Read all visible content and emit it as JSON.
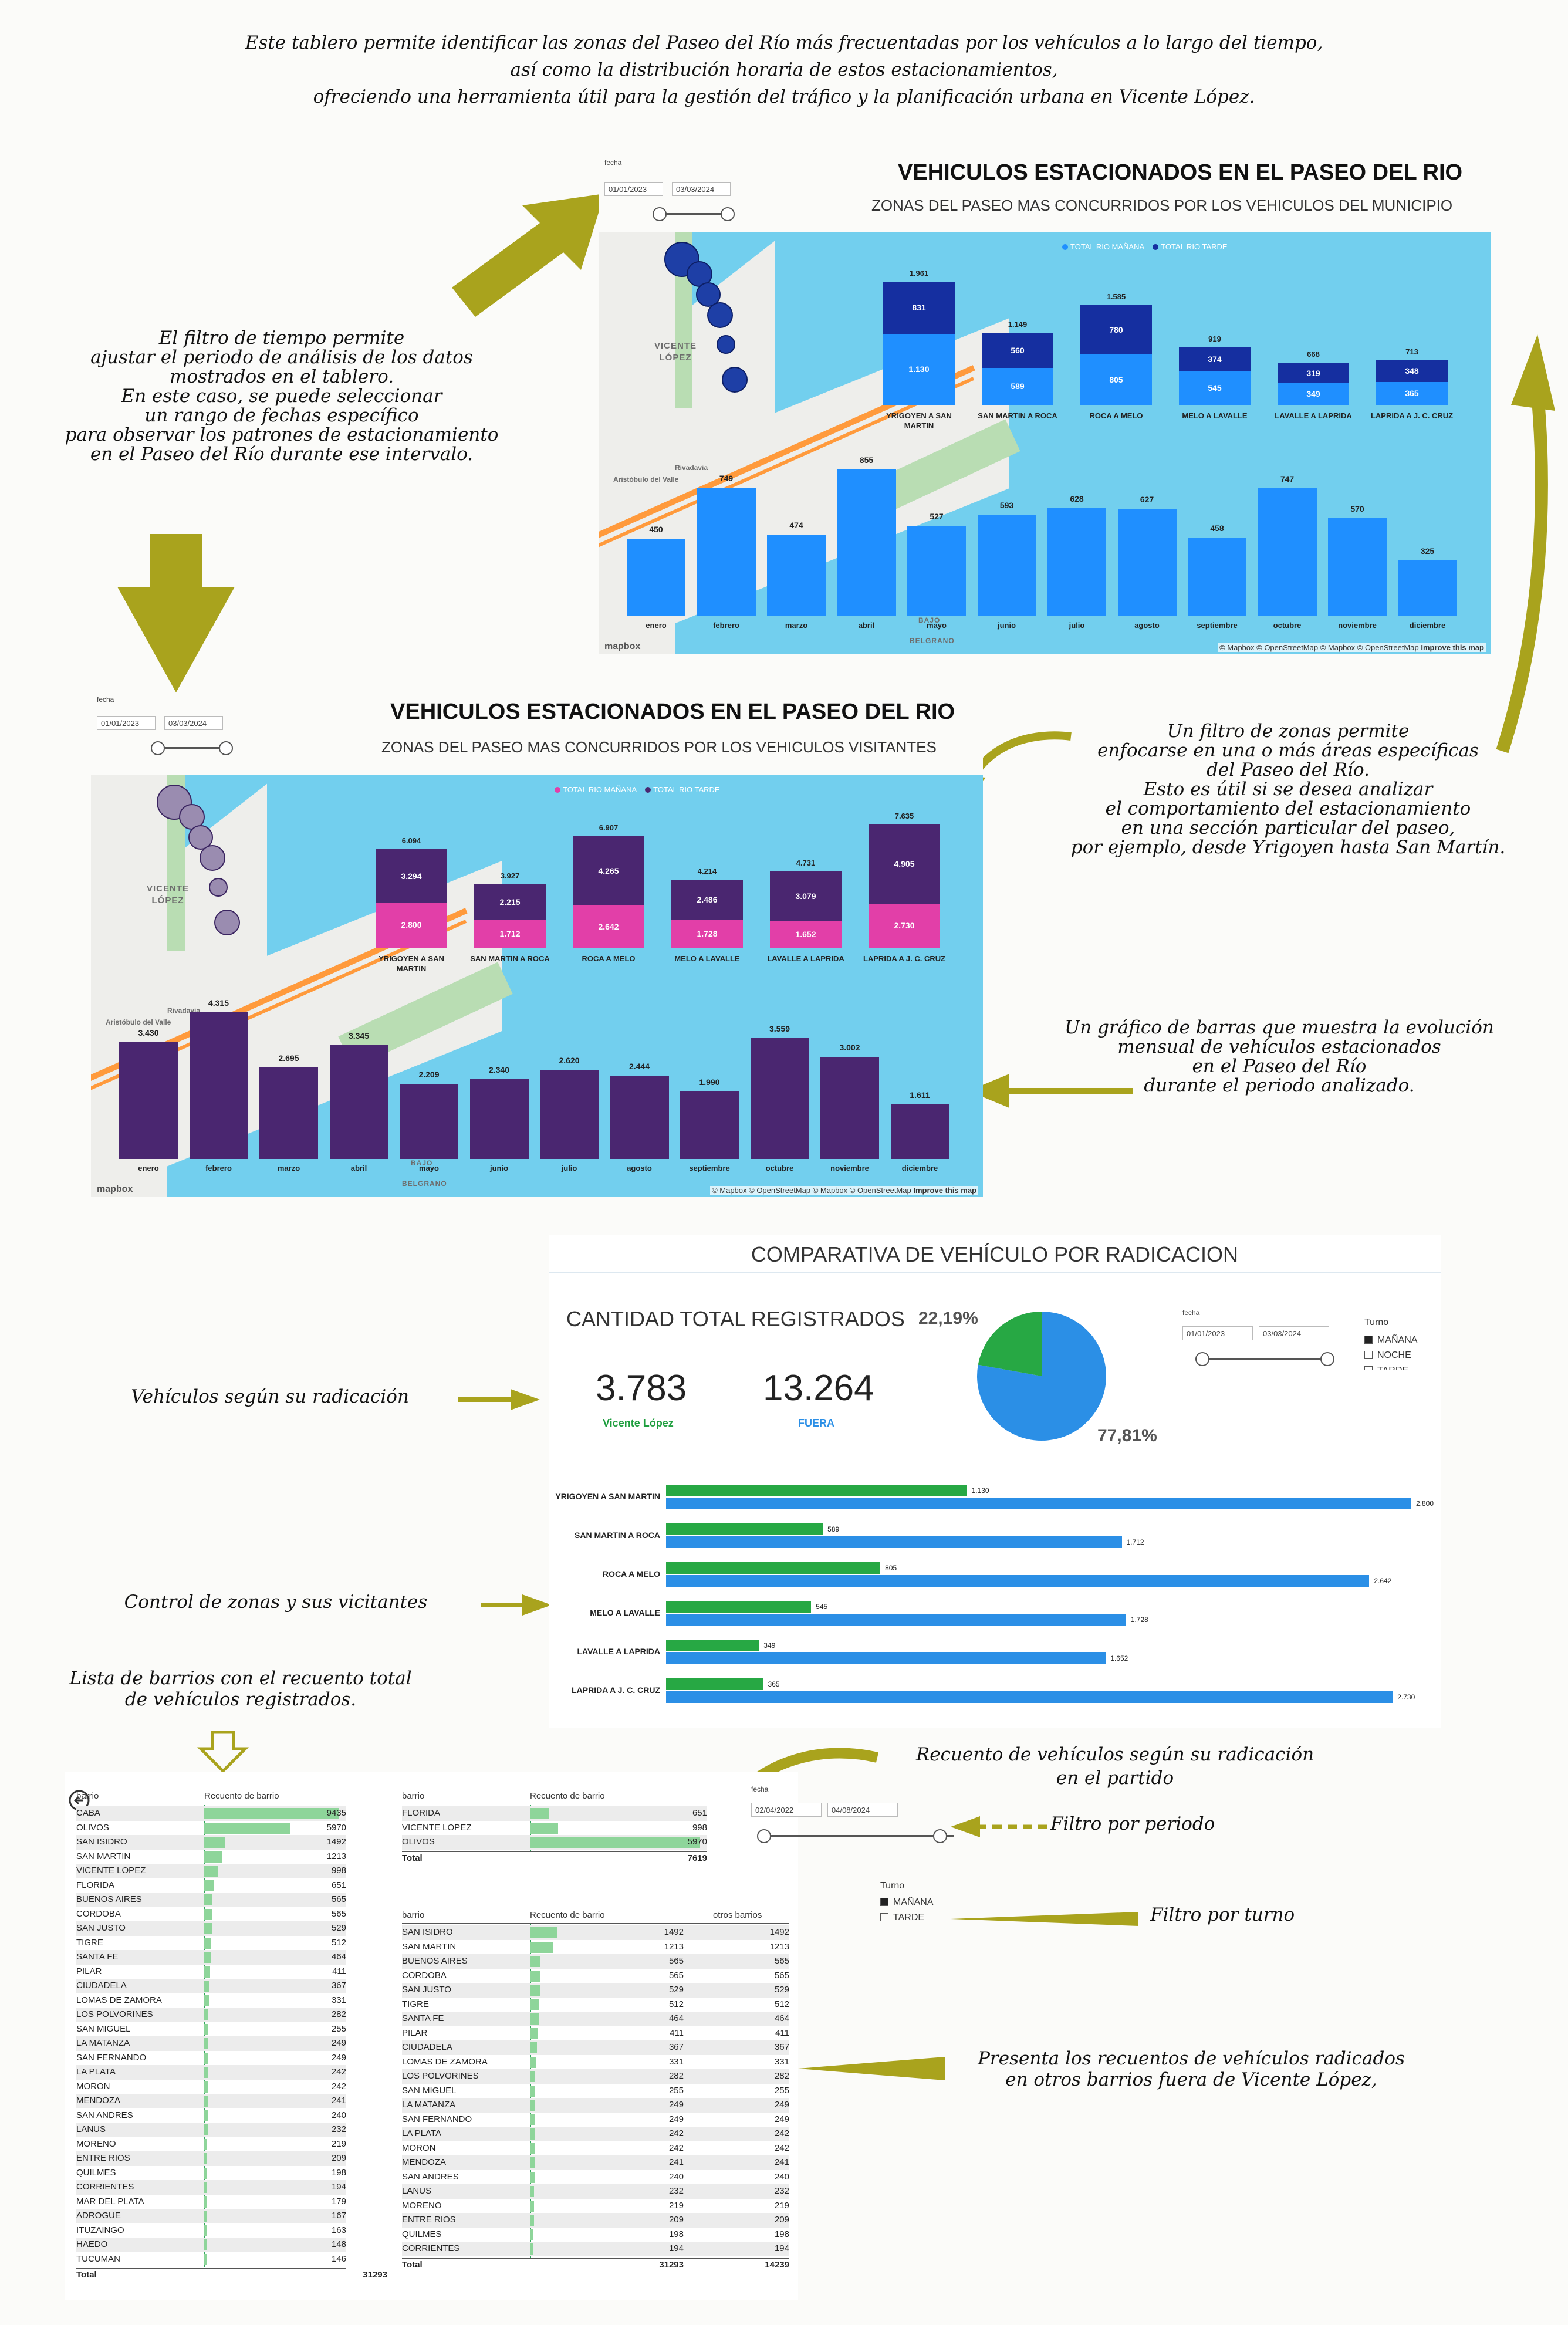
{
  "intro": [
    "Este tablero permite identificar las zonas del Paseo del Río más frecuentadas por los vehículos a lo largo del tiempo,",
    "así como la distribución horaria de estos estacionamientos,",
    "ofreciendo una herramienta útil para la gestión del tráfico y la planificación urbana en Vicente López."
  ],
  "notes": {
    "time_filter": [
      "El filtro de tiempo permite",
      "ajustar el periodo de análisis de los datos",
      "mostrados en el tablero.",
      "En este caso, se puede seleccionar",
      "un rango de fechas específico",
      "para observar los patrones de estacionamiento",
      "en el Paseo del Río durante ese intervalo."
    ],
    "zone_filter": [
      "Un filtro de zonas permite",
      "enfocarse en una o más áreas específicas",
      "del Paseo del Río.",
      "Esto es útil si se desea analizar",
      "el comportamiento del estacionamiento",
      "en una sección particular del paseo,",
      "por ejemplo, desde Yrigoyen hasta San Martín."
    ],
    "monthly": [
      "Un gráfico de barras que muestra la evolución",
      "mensual de vehículos estacionados",
      "en el Paseo del Río",
      "durante el periodo analizado."
    ],
    "radicacion": "Vehículos según su radicación",
    "zonas": "Control de zonas y sus vicitantes",
    "barrios": [
      "Lista de barrios con el recuento total",
      "de vehículos registrados."
    ],
    "recuento": [
      "Recuento de vehículos según su radicación",
      "en el partido"
    ],
    "periodo": "Filtro por periodo",
    "turno": "Filtro por turno",
    "otros": [
      "Presenta los recuentos de vehículos radicados",
      "en otros barrios fuera de Vicente López,"
    ]
  },
  "slicer": {
    "label": "fecha",
    "from": "01/01/2023",
    "to": "03/03/2024"
  },
  "slicer2": {
    "label": "fecha",
    "from": "02/04/2022",
    "to": "04/08/2024"
  },
  "map": {
    "place": [
      "VICENTE",
      "LÓPEZ"
    ],
    "label1": "Aristóbulo del Valle",
    "label2": "Rivadavia",
    "label3": "BAJO",
    "label4": "BELGRANO",
    "credit": "© Mapbox © OpenStreetMap © Mapbox © OpenStreetMap",
    "improve": "Improve this map",
    "logo": "mapbox"
  },
  "panel1": {
    "title": "VEHICULOS ESTACIONADOS EN EL PASEO DEL RIO",
    "subtitle": "ZONAS DEL PASEO MAS CONCURRIDOS POR LOS VEHICULOS DEL MUNICIPIO",
    "legend": [
      "TOTAL RIO MAÑANA",
      "TOTAL RIO TARDE"
    ],
    "colors": {
      "manana": "#1f8fff",
      "tarde": "#152fa0",
      "monthly": "#1f8fff"
    },
    "zones": [
      {
        "name": "YRIGOYEN A SAN MARTIN",
        "manana": 1130,
        "tarde": 831,
        "manana_label": "1.130",
        "tarde_label": "831",
        "total_label": "1.961"
      },
      {
        "name": "SAN MARTIN A ROCA",
        "manana": 589,
        "tarde": 560,
        "manana_label": "589",
        "tarde_label": "560",
        "total_label": "1.149"
      },
      {
        "name": "ROCA A MELO",
        "manana": 805,
        "tarde": 780,
        "manana_label": "805",
        "tarde_label": "780",
        "total_label": "1.585"
      },
      {
        "name": "MELO A LAVALLE",
        "manana": 545,
        "tarde": 374,
        "manana_label": "545",
        "tarde_label": "374",
        "total_label": "919"
      },
      {
        "name": "LAVALLE A LAPRIDA",
        "manana": 349,
        "tarde": 319,
        "manana_label": "349",
        "tarde_label": "319",
        "total_label": "668"
      },
      {
        "name": "LAPRIDA A J. C. CRUZ",
        "manana": 365,
        "tarde": 348,
        "manana_label": "365",
        "tarde_label": "348",
        "total_label": "713"
      }
    ],
    "months": [
      {
        "m": "enero",
        "v": 450,
        "l": "450"
      },
      {
        "m": "febrero",
        "v": 749,
        "l": "749"
      },
      {
        "m": "marzo",
        "v": 474,
        "l": "474"
      },
      {
        "m": "abril",
        "v": 855,
        "l": "855"
      },
      {
        "m": "mayo",
        "v": 527,
        "l": "527"
      },
      {
        "m": "junio",
        "v": 593,
        "l": "593"
      },
      {
        "m": "julio",
        "v": 628,
        "l": "628"
      },
      {
        "m": "agosto",
        "v": 627,
        "l": "627"
      },
      {
        "m": "septiembre",
        "v": 458,
        "l": "458"
      },
      {
        "m": "octubre",
        "v": 747,
        "l": "747"
      },
      {
        "m": "noviembre",
        "v": 570,
        "l": "570"
      },
      {
        "m": "diciembre",
        "v": 325,
        "l": "325"
      }
    ]
  },
  "panel2": {
    "title": "VEHICULOS ESTACIONADOS EN EL PASEO DEL RIO",
    "subtitle": "ZONAS DEL PASEO MAS CONCURRIDOS POR LOS VEHICULOS VISITANTES",
    "legend": [
      "TOTAL RIO MAÑANA",
      "TOTAL RIO TARDE"
    ],
    "colors": {
      "manana": "#e23fa8",
      "tarde": "#4a2670",
      "monthly": "#4a2670"
    },
    "zones": [
      {
        "name": "YRIGOYEN A SAN MARTIN",
        "manana": 2800,
        "tarde": 3294,
        "manana_label": "2.800",
        "tarde_label": "3.294",
        "total_label": "6.094"
      },
      {
        "name": "SAN MARTIN A ROCA",
        "manana": 1712,
        "tarde": 2215,
        "manana_label": "1.712",
        "tarde_label": "2.215",
        "total_label": "3.927"
      },
      {
        "name": "ROCA A MELO",
        "manana": 2642,
        "tarde": 4265,
        "manana_label": "2.642",
        "tarde_label": "4.265",
        "total_label": "6.907"
      },
      {
        "name": "MELO A LAVALLE",
        "manana": 1728,
        "tarde": 2486,
        "manana_label": "1.728",
        "tarde_label": "2.486",
        "total_label": "4.214"
      },
      {
        "name": "LAVALLE A LAPRIDA",
        "manana": 1652,
        "tarde": 3079,
        "manana_label": "1.652",
        "tarde_label": "3.079",
        "total_label": "4.731"
      },
      {
        "name": "LAPRIDA A J. C. CRUZ",
        "manana": 2730,
        "tarde": 4905,
        "manana_label": "2.730",
        "tarde_label": "4.905",
        "total_label": "7.635"
      }
    ],
    "months": [
      {
        "m": "enero",
        "v": 3430,
        "l": "3.430"
      },
      {
        "m": "febrero",
        "v": 4315,
        "l": "4.315"
      },
      {
        "m": "marzo",
        "v": 2695,
        "l": "2.695"
      },
      {
        "m": "abril",
        "v": 3345,
        "l": "3.345"
      },
      {
        "m": "mayo",
        "v": 2209,
        "l": "2.209"
      },
      {
        "m": "junio",
        "v": 2340,
        "l": "2.340"
      },
      {
        "m": "julio",
        "v": 2620,
        "l": "2.620"
      },
      {
        "m": "agosto",
        "v": 2444,
        "l": "2.444"
      },
      {
        "m": "septiembre",
        "v": 1990,
        "l": "1.990"
      },
      {
        "m": "octubre",
        "v": 3559,
        "l": "3.559"
      },
      {
        "m": "noviembre",
        "v": 3002,
        "l": "3.002"
      },
      {
        "m": "diciembre",
        "v": 1611,
        "l": "1.611"
      }
    ]
  },
  "panel3": {
    "title": "COMPARATIVA DE VEHÍCULO POR RADICACION",
    "kpi_title": "CANTIDAD TOTAL REGISTRADOS",
    "kpi1": {
      "value": "3.783",
      "label": "Vicente López",
      "color": "#1e9e3e"
    },
    "kpi2": {
      "value": "13.264",
      "label": "FUERA",
      "color": "#2b8fe6"
    },
    "pie": {
      "vl_pct": 22.19,
      "fuera_pct": 77.81,
      "vl_label": "22,19%",
      "fuera_label": "77,81%",
      "colors": [
        "#27a844",
        "#2b8fe6"
      ]
    },
    "turno": {
      "label": "Turno",
      "options": [
        "MAÑANA",
        "NOCHE",
        "TARDE"
      ],
      "checked": [
        true,
        false,
        false
      ]
    },
    "bars": [
      {
        "zone": "YRIGOYEN A SAN MARTIN",
        "vl": 1130,
        "fuera": 2800,
        "vl_label": "1.130",
        "fuera_label": "2.800"
      },
      {
        "zone": "SAN MARTIN A ROCA",
        "vl": 589,
        "fuera": 1712,
        "vl_label": "589",
        "fuera_label": "1.712"
      },
      {
        "zone": "ROCA A MELO",
        "vl": 805,
        "fuera": 2642,
        "vl_label": "805",
        "fuera_label": "2.642"
      },
      {
        "zone": "MELO A LAVALLE",
        "vl": 545,
        "fuera": 1728,
        "vl_label": "545",
        "fuera_label": "1.728"
      },
      {
        "zone": "LAVALLE A LAPRIDA",
        "vl": 349,
        "fuera": 1652,
        "vl_label": "349",
        "fuera_label": "1.652"
      },
      {
        "zone": "LAPRIDA A J. C. CRUZ",
        "vl": 365,
        "fuera": 2730,
        "vl_label": "365",
        "fuera_label": "2.730"
      }
    ]
  },
  "table1": {
    "headers": [
      "barrio",
      "Recuento de barrio"
    ],
    "rows": [
      [
        "CABA",
        9435
      ],
      [
        "OLIVOS",
        5970
      ],
      [
        "SAN ISIDRO",
        1492
      ],
      [
        "SAN MARTIN",
        1213
      ],
      [
        "VICENTE LOPEZ",
        998
      ],
      [
        "FLORIDA",
        651
      ],
      [
        "BUENOS AIRES",
        565
      ],
      [
        "CORDOBA",
        565
      ],
      [
        "SAN JUSTO",
        529
      ],
      [
        "TIGRE",
        512
      ],
      [
        "SANTA FE",
        464
      ],
      [
        "PILAR",
        411
      ],
      [
        "CIUDADELA",
        367
      ],
      [
        "LOMAS DE ZAMORA",
        331
      ],
      [
        "LOS POLVORINES",
        282
      ],
      [
        "SAN MIGUEL",
        255
      ],
      [
        "LA MATANZA",
        249
      ],
      [
        "SAN FERNANDO",
        249
      ],
      [
        "LA PLATA",
        242
      ],
      [
        "MORON",
        242
      ],
      [
        "MENDOZA",
        241
      ],
      [
        "SAN ANDRES",
        240
      ],
      [
        "LANUS",
        232
      ],
      [
        "MORENO",
        219
      ],
      [
        "ENTRE RIOS",
        209
      ],
      [
        "QUILMES",
        198
      ],
      [
        "CORRIENTES",
        194
      ],
      [
        "MAR DEL PLATA",
        179
      ],
      [
        "ADROGUE",
        167
      ],
      [
        "ITUZAINGO",
        163
      ],
      [
        "HAEDO",
        148
      ],
      [
        "TUCUMAN",
        146
      ]
    ],
    "total_label": "Total",
    "total": 31293,
    "max": 9435
  },
  "table2": {
    "headers": [
      "barrio",
      "Recuento de barrio"
    ],
    "rows": [
      [
        "FLORIDA",
        651
      ],
      [
        "VICENTE LOPEZ",
        998
      ],
      [
        "OLIVOS",
        5970
      ]
    ],
    "total_label": "Total",
    "total": 7619,
    "max": 5970
  },
  "table3": {
    "headers": [
      "barrio",
      "Recuento de barrio",
      "otros barrios"
    ],
    "rows": [
      [
        "SAN ISIDRO",
        1492,
        1492
      ],
      [
        "SAN MARTIN",
        1213,
        1213
      ],
      [
        "BUENOS AIRES",
        565,
        565
      ],
      [
        "CORDOBA",
        565,
        565
      ],
      [
        "SAN JUSTO",
        529,
        529
      ],
      [
        "TIGRE",
        512,
        512
      ],
      [
        "SANTA FE",
        464,
        464
      ],
      [
        "PILAR",
        411,
        411
      ],
      [
        "CIUDADELA",
        367,
        367
      ],
      [
        "LOMAS DE ZAMORA",
        331,
        331
      ],
      [
        "LOS POLVORINES",
        282,
        282
      ],
      [
        "SAN MIGUEL",
        255,
        255
      ],
      [
        "LA MATANZA",
        249,
        249
      ],
      [
        "SAN FERNANDO",
        249,
        249
      ],
      [
        "LA PLATA",
        242,
        242
      ],
      [
        "MORON",
        242,
        242
      ],
      [
        "MENDOZA",
        241,
        241
      ],
      [
        "SAN ANDRES",
        240,
        240
      ],
      [
        "LANUS",
        232,
        232
      ],
      [
        "MORENO",
        219,
        219
      ],
      [
        "ENTRE RIOS",
        209,
        209
      ],
      [
        "QUILMES",
        198,
        198
      ],
      [
        "CORRIENTES",
        194,
        194
      ]
    ],
    "total_label": "Total",
    "total": 31293,
    "total2": 14239,
    "max": 9435
  },
  "turno2": {
    "label": "Turno",
    "options": [
      "MAÑANA",
      "TARDE"
    ],
    "checked": [
      true,
      false
    ]
  }
}
